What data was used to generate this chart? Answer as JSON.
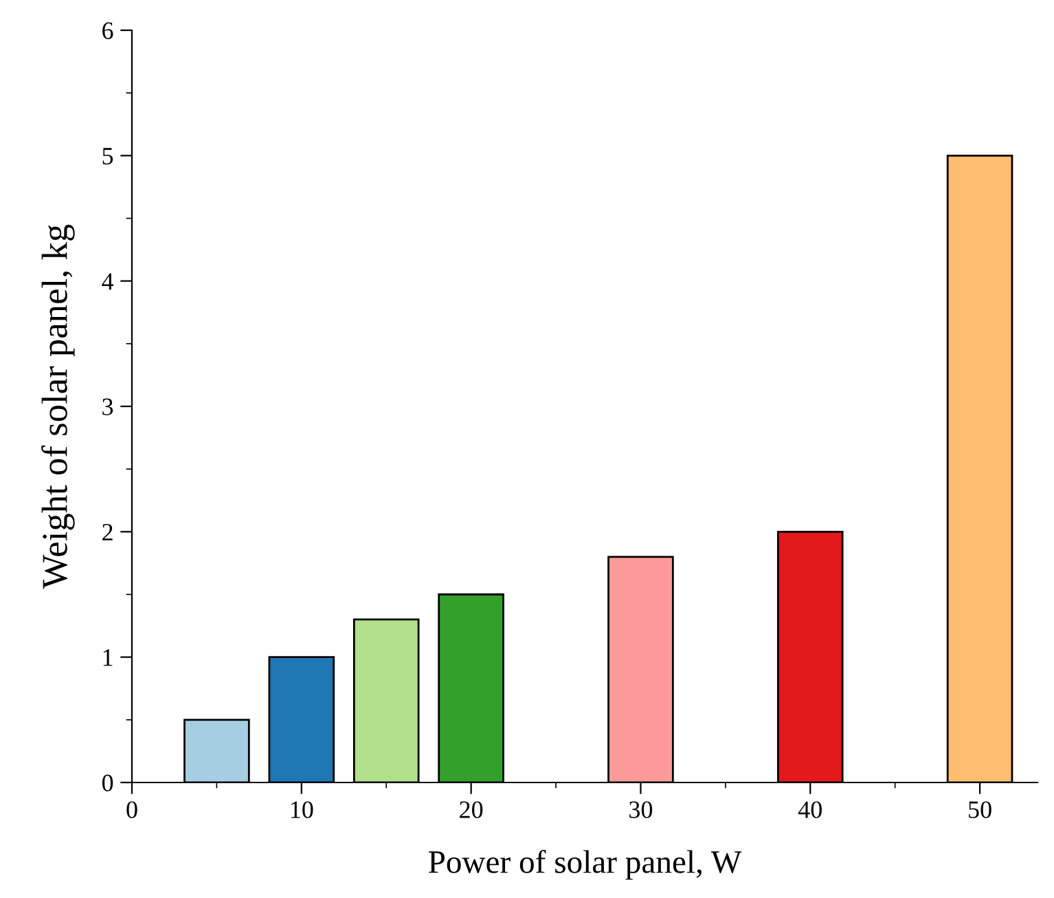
{
  "chart_data": {
    "type": "bar",
    "xlabel": "Power of solar panel, W",
    "ylabel": "Weight of solar panel, kg",
    "x": [
      5,
      10,
      15,
      20,
      30,
      40,
      50
    ],
    "values": [
      0.5,
      1,
      1.3,
      1.5,
      1.8,
      2,
      5
    ],
    "colors": [
      "#a6cee3",
      "#1f78b4",
      "#b2df8a",
      "#33a02c",
      "#fb9a99",
      "#e31a1c",
      "#fdbf6f"
    ],
    "xlim": [
      0,
      53.4
    ],
    "xticks": [
      0,
      10,
      20,
      30,
      40,
      50
    ],
    "ylim": [
      0,
      6
    ],
    "yticks": [
      0,
      1,
      2,
      3,
      4,
      5,
      6
    ],
    "grid": false,
    "legend": false
  }
}
